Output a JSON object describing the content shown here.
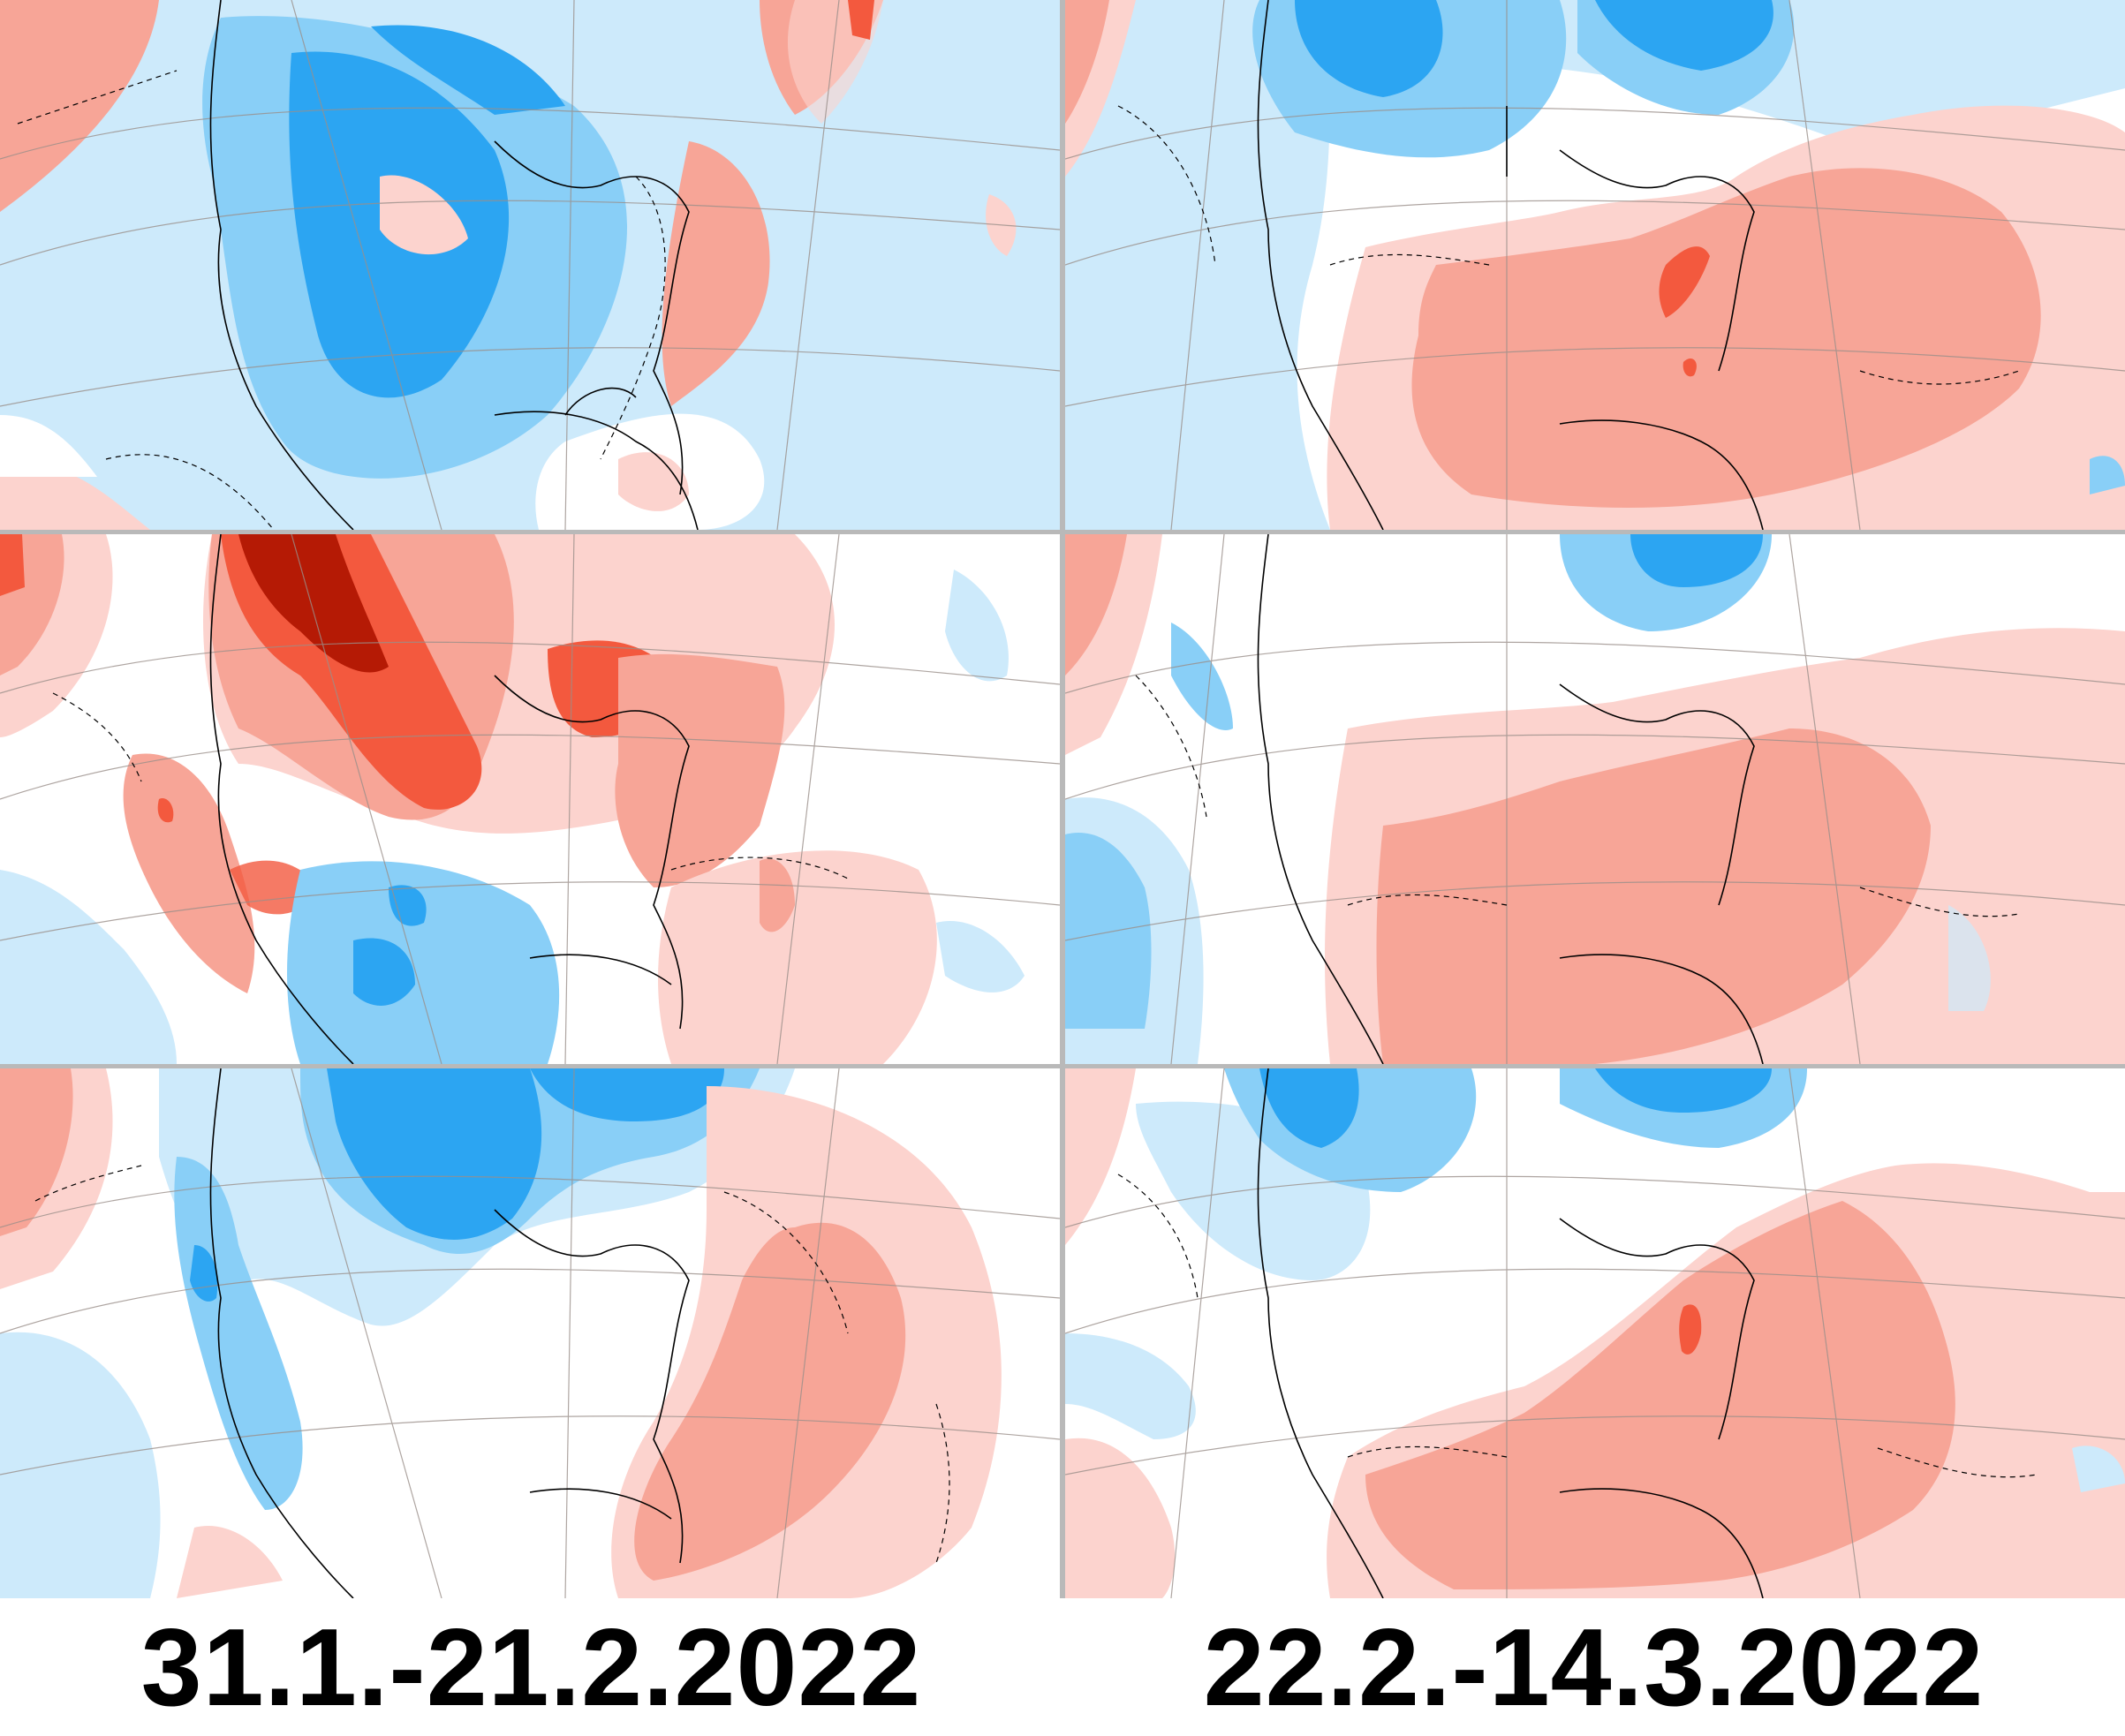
{
  "figure": {
    "columns": [
      {
        "caption": "31.1.-21.2.2022"
      },
      {
        "caption": "22.2.-14.3.2022"
      }
    ],
    "rows": 3
  },
  "legend_colors": {
    "strong_cold": "#2ca5f2",
    "moderate_cold": "#89cff7",
    "weak_cold": "#cdeafb",
    "neutral": "#ffffff",
    "weak_warm": "#fcd3ce",
    "moderate_warm": "#f7a597",
    "strong_warm": "#f3593e",
    "extreme_warm": "#b51a05"
  },
  "panels": [
    {
      "id": "r1c1",
      "pattern": "cold-west-warm-east-coast"
    },
    {
      "id": "r1c2",
      "pattern": "warm-southeast"
    },
    {
      "id": "r2c1",
      "pattern": "warm-canada-cold-southwest"
    },
    {
      "id": "r2c2",
      "pattern": "warm-southeast-broad"
    },
    {
      "id": "r3c1",
      "pattern": "cold-canada-warm-atlantic"
    },
    {
      "id": "r3c2",
      "pattern": "warm-southeast-core"
    }
  ]
}
